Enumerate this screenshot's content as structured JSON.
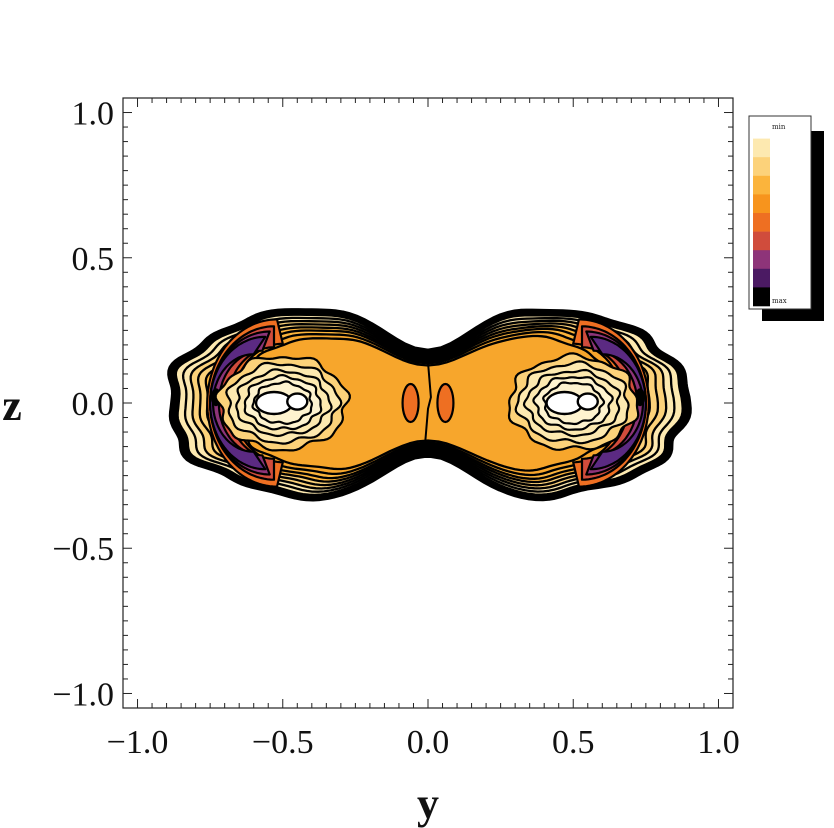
{
  "chart_data": {
    "type": "contour",
    "title": "",
    "xlabel": "y",
    "ylabel": "z",
    "xlim": [
      -1.05,
      1.05
    ],
    "ylim": [
      -1.05,
      1.05
    ],
    "xticks": [
      "−1.0",
      "−0.5",
      "0.0",
      "0.5",
      "1.0"
    ],
    "yticks": [
      "1.0",
      "0.5",
      "0.0",
      "−0.5",
      "−1.0"
    ],
    "xtick_values": [
      -1.0,
      -0.5,
      0.0,
      0.5,
      1.0
    ],
    "ytick_values": [
      1.0,
      0.5,
      0.0,
      -0.5,
      -1.0
    ],
    "grid": false,
    "legend": {
      "placement": "right",
      "min_label": "min",
      "max_label": "max",
      "colors": [
        "#ffffff",
        "#fde9b0",
        "#fcd27a",
        "#fbb43c",
        "#f7941d",
        "#ee6f22",
        "#d04c3c",
        "#8e3479",
        "#4b1a63",
        "#000000"
      ]
    },
    "features": {
      "lobe_centers": [
        [
          -0.5,
          0.0
        ],
        [
          0.5,
          0.0
        ]
      ],
      "holes": [
        [
          -0.5,
          0.0
        ],
        [
          0.5,
          0.0
        ]
      ],
      "max_regions": [
        [
          -0.72,
          0.0
        ],
        [
          0.72,
          0.0
        ]
      ],
      "extent_y": [
        -0.88,
        0.88
      ],
      "extent_z": [
        -0.35,
        0.35
      ]
    }
  }
}
